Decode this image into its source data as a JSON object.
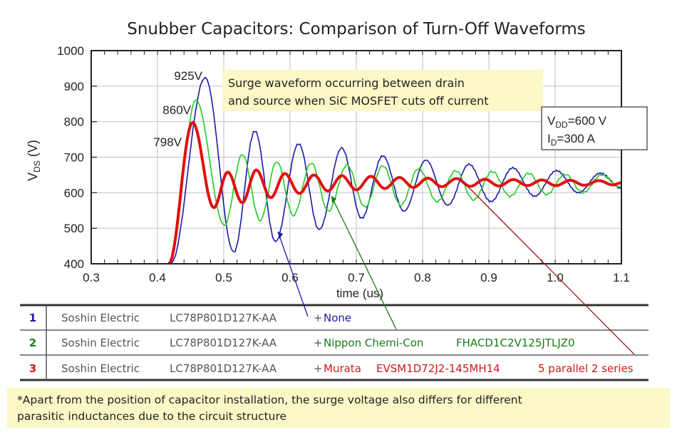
{
  "chart_data": {
    "type": "line",
    "title": "Snubber Capacitors:  Comparison of Turn-Off Waveforms",
    "xlabel": "time (us)",
    "ylabel_main": "V",
    "ylabel_sub": "DS",
    "ylabel_unit": " (V)",
    "xlim": [
      0.3,
      1.1
    ],
    "ylim": [
      400,
      1000
    ],
    "xticks": [
      "0.3",
      "0.4",
      "0.5",
      "0.6",
      "0.7",
      "0.8",
      "0.9",
      "1.0",
      "1.1"
    ],
    "yticks": [
      "400",
      "500",
      "600",
      "700",
      "800",
      "900",
      "1000"
    ],
    "grid": true,
    "series": [
      {
        "id": "1",
        "color": "#1a1aa8",
        "width": 1.6,
        "points": [
          [
            0.42,
            400
          ],
          [
            0.472,
            925
          ],
          [
            0.515,
            432
          ],
          [
            0.547,
            774
          ],
          [
            0.578,
            462
          ],
          [
            0.613,
            738
          ],
          [
            0.644,
            496
          ],
          [
            0.678,
            726
          ],
          [
            0.708,
            528
          ],
          [
            0.74,
            704
          ],
          [
            0.772,
            548
          ],
          [
            0.805,
            692
          ],
          [
            0.838,
            565
          ],
          [
            0.87,
            680
          ],
          [
            0.903,
            575
          ],
          [
            0.936,
            670
          ],
          [
            0.969,
            590
          ],
          [
            1.002,
            662
          ],
          [
            1.035,
            600
          ],
          [
            1.068,
            655
          ],
          [
            1.1,
            612
          ]
        ]
      },
      {
        "id": "2",
        "color": "#22cc22",
        "width": 1.6,
        "points": [
          [
            0.418,
            400
          ],
          [
            0.458,
            860
          ],
          [
            0.501,
            508
          ],
          [
            0.528,
            708
          ],
          [
            0.555,
            522
          ],
          [
            0.58,
            688
          ],
          [
            0.605,
            536
          ],
          [
            0.632,
            684
          ],
          [
            0.658,
            548
          ],
          [
            0.686,
            678
          ],
          [
            0.713,
            560
          ],
          [
            0.74,
            676
          ],
          [
            0.767,
            565
          ],
          [
            0.794,
            668
          ],
          [
            0.822,
            575
          ],
          [
            0.85,
            662
          ],
          [
            0.877,
            580
          ],
          [
            0.905,
            660
          ],
          [
            0.932,
            590
          ],
          [
            0.96,
            655
          ],
          [
            0.987,
            595
          ],
          [
            1.015,
            652
          ],
          [
            1.042,
            600
          ],
          [
            1.07,
            650
          ],
          [
            1.1,
            615
          ]
        ]
      },
      {
        "id": "3",
        "color": "#e01010",
        "width": 4,
        "points": [
          [
            0.417,
            400
          ],
          [
            0.453,
            798
          ],
          [
            0.485,
            558
          ],
          [
            0.506,
            658
          ],
          [
            0.528,
            572
          ],
          [
            0.549,
            664
          ],
          [
            0.571,
            586
          ],
          [
            0.592,
            654
          ],
          [
            0.614,
            598
          ],
          [
            0.636,
            650
          ],
          [
            0.657,
            605
          ],
          [
            0.678,
            648
          ],
          [
            0.7,
            608
          ],
          [
            0.722,
            646
          ],
          [
            0.743,
            612
          ],
          [
            0.765,
            643
          ],
          [
            0.786,
            615
          ],
          [
            0.808,
            641
          ],
          [
            0.829,
            617
          ],
          [
            0.851,
            640
          ],
          [
            0.872,
            618
          ],
          [
            0.894,
            638
          ],
          [
            0.915,
            619
          ],
          [
            0.937,
            637
          ],
          [
            0.958,
            620
          ],
          [
            0.98,
            636
          ],
          [
            1.001,
            620
          ],
          [
            1.023,
            635
          ],
          [
            1.044,
            621
          ],
          [
            1.066,
            634
          ],
          [
            1.087,
            622
          ],
          [
            1.1,
            628
          ]
        ]
      }
    ],
    "annotations": {
      "peak_labels": [
        "925V",
        "860V",
        "798V"
      ],
      "note_line1": "Surge waveform occurring between drain",
      "note_line2": "and source when SiC MOSFET cuts off current",
      "vdd_main": "V",
      "vdd_sub": "DD",
      "vdd_value": "=600 V",
      "id_main": "I",
      "id_sub": "D",
      "id_value": "=300 A"
    }
  },
  "legend_table": {
    "rows": [
      {
        "num": "1",
        "maker": "Soshin Electric",
        "part": "LC78P801D127K-AA",
        "plus": "+",
        "addon": [
          "None"
        ],
        "color": "#1a1aa8"
      },
      {
        "num": "2",
        "maker": "Soshin Electric",
        "part": "LC78P801D127K-AA",
        "plus": "+",
        "addon": [
          "Nippon Chemi-Con",
          "FHACD1C2V125JTLJZ0"
        ],
        "color": "#1a7a1a"
      },
      {
        "num": "3",
        "maker": "Soshin Electric",
        "part": "LC78P801D127K-AA",
        "plus": "+",
        "addon": [
          "Murata",
          "EVSM1D72J2-145MH14",
          "5 parallel 2 series"
        ],
        "color": "#d01818"
      }
    ]
  },
  "footnote": {
    "line1": "*Apart from the position of capacitor installation, the surge voltage also differs for  different",
    "line2": " parasitic inductances due to the circuit structure"
  },
  "colors": {
    "note_bg": "#fbf7c6",
    "grid": "#c8c8c8"
  }
}
